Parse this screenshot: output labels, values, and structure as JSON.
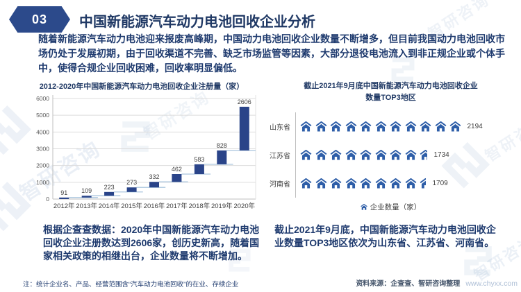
{
  "header": {
    "section_number": "03",
    "title": "中国新能源汽车动力电池回收企业分析"
  },
  "intro": {
    "text": "随着新能源汽车动力电池迎来报废高峰期，中国动力电池回收企业数量不断增多，但目前我国动力电池回收市场仍处于发展初期，由于回收渠道不完善、缺乏市场监管等因素，大部分退役电池流入到非正规企业或个体手中，使得合规企业回收困难，回收率明显偏低。"
  },
  "chart_data": [
    {
      "type": "bar",
      "subtype": "waterfall",
      "title": "2012-2020年中国新能源汽车动力电池回收企业注册量（家）",
      "categories": [
        "2012年",
        "2013年",
        "2014年",
        "2015年",
        "2016年",
        "2017年",
        "2018年",
        "2019年",
        "2020年"
      ],
      "values": [
        91,
        109,
        223,
        273,
        332,
        462,
        583,
        828,
        2606
      ],
      "cumulative": [
        91,
        200,
        423,
        696,
        1028,
        1490,
        2073,
        2901,
        5507
      ],
      "xlabel": "",
      "ylabel": "",
      "ylim": [
        0,
        6000
      ],
      "ytick_interval": 1000,
      "grid": true,
      "legend_shown": false
    },
    {
      "type": "pictograph",
      "title_line1": "截止2021年9月底中国新能源汽车动力电池回收企业",
      "title_line2": "数量TOP3地区",
      "icon": "house",
      "legend": "企业数量（家）",
      "rows": [
        {
          "label": "山东省",
          "value": 2194,
          "icons": 10.97
        },
        {
          "label": "江苏省",
          "value": 1734,
          "icons": 8.67
        },
        {
          "label": "河南省",
          "value": 1709,
          "icons": 8.55
        }
      ]
    }
  ],
  "left_summary": {
    "text": "根据企查查数据：2020年中国新能源汽车动力电池回收企业注册数达到2606家，创历史新高，随着国家相关政策的相继出台，企业数量将不断增加。"
  },
  "right_summary": {
    "text": "截止2021年9月底，中国新能源汽车动力电池回收企业数量TOP3地区依次为山东省、江苏省、河南省。"
  },
  "footer": {
    "note": "注：统计企业名、产品、经营范围含“汽车动力电池回收”的在业、存续企业",
    "source": "资料来源：企查查、智研咨询整理",
    "url": "www.chyxx.com"
  },
  "watermark": {
    "text": "智研咨询"
  },
  "colors": {
    "accent_navy": "#1f3864",
    "badge": "#2c4a8b",
    "bar": "#2a4489",
    "connector": "#a9c4de",
    "house": "#2e5ea8",
    "grid": "#dcdcdc",
    "axis": "#bfbfbf",
    "tick": "#595959",
    "value_label": "#404040",
    "source_text": "#44546a",
    "url": "#aebfd6",
    "watermark": "#7a9cc6"
  }
}
